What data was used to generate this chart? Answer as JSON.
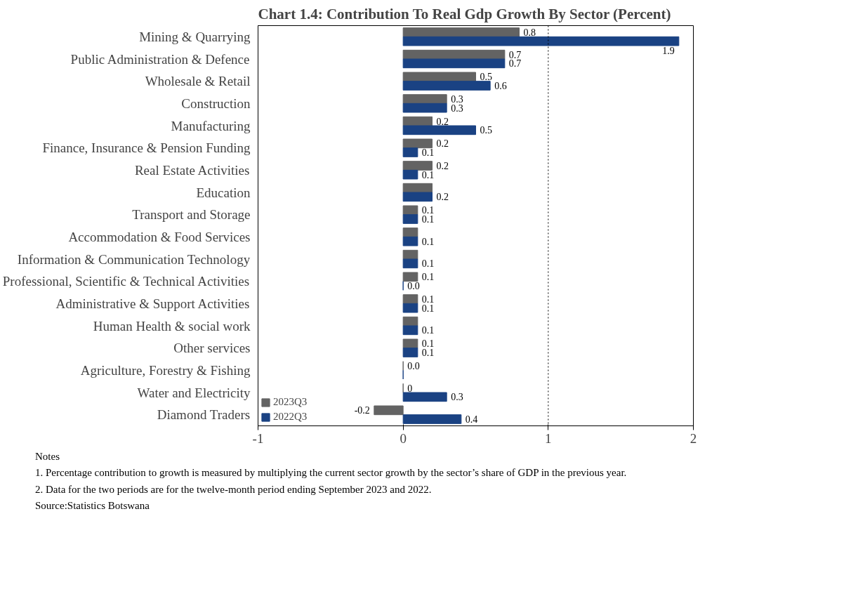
{
  "chart_data": {
    "type": "bar",
    "orientation": "horizontal",
    "title": "Chart 1.4: Contribution To Real Gdp Growth By Sector (Percent)",
    "categories": [
      "Mining & Quarrying",
      "Public Administration & Defence",
      "Wholesale & Retail",
      "Construction",
      "Manufacturing",
      "Finance, Insurance & Pension Funding",
      "Real Estate Activities",
      "Education",
      "Transport and Storage",
      "Accommodation & Food Services",
      "Information & Communication Technology",
      "Professional, Scientific & Technical Activities",
      "Administrative & Support Activities",
      "Human Health & social work",
      "Other services",
      "Agriculture, Forestry & Fishing",
      "Water and Electricity",
      "Diamond Traders"
    ],
    "series": [
      {
        "name": "2023Q3",
        "color": "#636363",
        "values": [
          0.8,
          0.7,
          0.5,
          0.3,
          0.2,
          0.2,
          0.2,
          0.2,
          0.1,
          0.1,
          0.1,
          0.1,
          0.1,
          0.1,
          0.1,
          0.0,
          0.0,
          -0.2
        ],
        "value_labels": [
          "0.8",
          "0.7",
          "0.5",
          "0.3",
          "0.2",
          "0.2",
          "0.2",
          null,
          "0.1",
          null,
          null,
          "0.1",
          "0.1",
          null,
          "0.1",
          "0.0",
          "0",
          "-0.2"
        ]
      },
      {
        "name": "2022Q3",
        "color": "#1a4283",
        "values": [
          1.9,
          0.7,
          0.6,
          0.3,
          0.5,
          0.1,
          0.1,
          0.2,
          0.1,
          0.1,
          0.1,
          0.0,
          0.1,
          0.1,
          0.1,
          0.0,
          0.3,
          0.4
        ],
        "value_labels": [
          "1.9",
          "0.7",
          "0.6",
          "0.3",
          "0.5",
          "0.1",
          "0.1",
          "0.2",
          "0.1",
          "0.1",
          "0.1",
          "0.0",
          "0.1",
          "0.1",
          "0.1",
          null,
          "0.3",
          "0.4"
        ]
      }
    ],
    "xlim": [
      -1,
      2
    ],
    "xticks": [
      {
        "value": -1,
        "label": "-1"
      },
      0,
      1,
      2
    ],
    "ref_lines": [
      {
        "axis": "x",
        "value": 1,
        "label": null,
        "line_style": "dotted",
        "color": "#000000"
      }
    ],
    "grid": false,
    "legend": "bottom left",
    "annotations": [
      "Notes",
      "1.  Percentage contribution to growth is measured by multiplying the current sector growth by the sector’s share of GDP in the previous year.",
      "2.  Data for the two periods are for the twelve-month period ending September 2023 and 2022.",
      "Source:Statistics Botswana"
    ]
  }
}
